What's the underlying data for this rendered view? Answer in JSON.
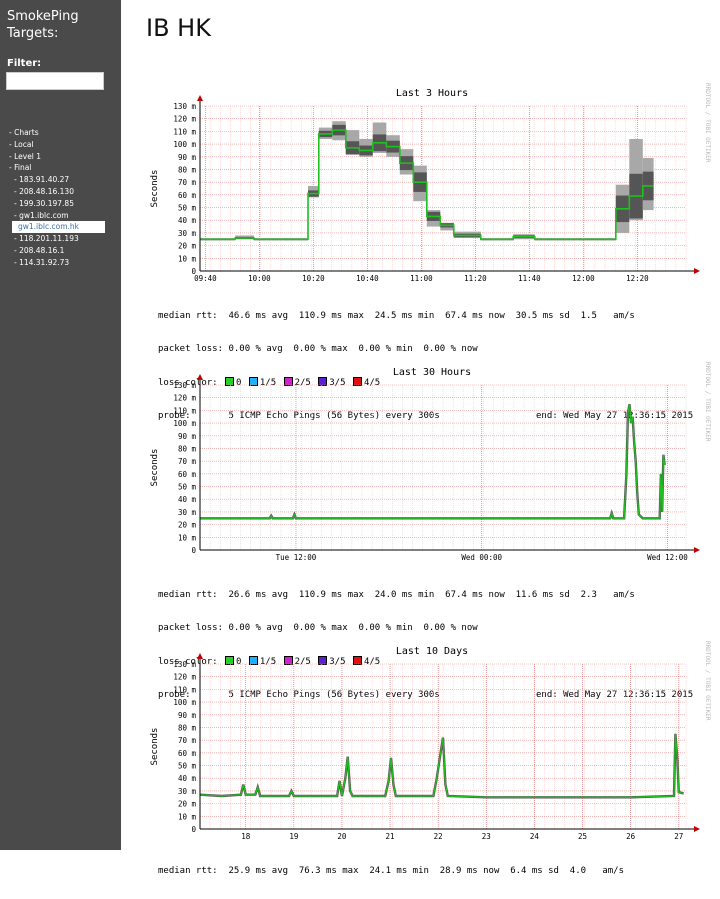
{
  "sidebar": {
    "brand_line1": "SmokePing",
    "brand_line2": "Targets:",
    "filter_label": "Filter:",
    "filter_value": "",
    "nav": [
      {
        "label": "- Charts",
        "level": 0
      },
      {
        "label": "- Local",
        "level": 0
      },
      {
        "label": "- Level 1",
        "level": 0
      },
      {
        "label": "- Final",
        "level": 0
      },
      {
        "label": "- 183.91.40.27",
        "level": 1
      },
      {
        "label": "- 208.48.16.130",
        "level": 1
      },
      {
        "label": "- 199.30.197.85",
        "level": 1
      },
      {
        "label": "- gw1.iblc.com",
        "level": 1
      },
      {
        "label": "gw1.iblc.com.hk",
        "level": 2,
        "active": true
      },
      {
        "label": "- 118.201.11.193",
        "level": 1
      },
      {
        "label": "- 208.48.16.1",
        "level": 1
      },
      {
        "label": "- 114.31.92.73",
        "level": 1
      }
    ]
  },
  "page": {
    "title": "IB HK"
  },
  "rrdtool_watermark": "RRDTOOL / TOBI OETIKER",
  "loss_colors": [
    {
      "label": "0",
      "color": "#26d026"
    },
    {
      "label": "1/5",
      "color": "#1fb0ff"
    },
    {
      "label": "2/5",
      "color": "#d21fd2"
    },
    {
      "label": "3/5",
      "color": "#5b1fd2"
    },
    {
      "label": "4/5",
      "color": "#e01010"
    }
  ],
  "graphs": [
    {
      "title": "Last 3 Hours",
      "median_rtt": "median rtt:  46.6 ms avg  110.9 ms max  24.5 ms min  67.4 ms now  30.5 ms sd  1.5   am/s",
      "packet_loss": "packet loss: 0.00 % avg  0.00 % max  0.00 % min  0.00 % now",
      "loss_color_label": "loss color:",
      "probe": "probe:       5 ICMP Echo Pings (56 Bytes) every 300s",
      "end": "end: Wed May 27 12:36:15 2015",
      "chart_data": {
        "type": "line",
        "title": "Last 3 Hours",
        "ylabel": "Seconds",
        "ylim": [
          0,
          130
        ],
        "y_ticks": [
          "0",
          "10 m",
          "20 m",
          "30 m",
          "40 m",
          "50 m",
          "60 m",
          "70 m",
          "80 m",
          "90 m",
          "100 m",
          "110 m",
          "120 m",
          "130 m"
        ],
        "x_tick_labels": [
          "09:40",
          "10:00",
          "10:20",
          "10:40",
          "11:00",
          "11:20",
          "11:40",
          "12:00",
          "12:20"
        ],
        "x_tick_pos": [
          0,
          20,
          40,
          60,
          80,
          100,
          120,
          140,
          160
        ],
        "xlim": [
          -2,
          178
        ],
        "x_unit": "minutes after 09:40",
        "steps": [
          {
            "x0": -2,
            "x1": 11,
            "med": 25,
            "lo": 24,
            "hi": 26
          },
          {
            "x0": 11,
            "x1": 18,
            "med": 26,
            "lo": 25,
            "hi": 28
          },
          {
            "x0": 18,
            "x1": 29,
            "med": 25,
            "lo": 24,
            "hi": 26
          },
          {
            "x0": 29,
            "x1": 38,
            "med": 25,
            "lo": 24,
            "hi": 26
          },
          {
            "x0": 38,
            "x1": 42,
            "med": 61,
            "lo": 58,
            "hi": 67
          },
          {
            "x0": 42,
            "x1": 47,
            "med": 108,
            "lo": 104,
            "hi": 113
          },
          {
            "x0": 47,
            "x1": 52,
            "med": 111,
            "lo": 103,
            "hi": 118
          },
          {
            "x0": 52,
            "x1": 57,
            "med": 97,
            "lo": 92,
            "hi": 111
          },
          {
            "x0": 57,
            "x1": 62,
            "med": 95,
            "lo": 90,
            "hi": 104
          },
          {
            "x0": 62,
            "x1": 67,
            "med": 101,
            "lo": 93,
            "hi": 117
          },
          {
            "x0": 67,
            "x1": 72,
            "med": 98,
            "lo": 90,
            "hi": 107
          },
          {
            "x0": 72,
            "x1": 77,
            "med": 85,
            "lo": 76,
            "hi": 96
          },
          {
            "x0": 77,
            "x1": 82,
            "med": 70,
            "lo": 55,
            "hi": 83
          },
          {
            "x0": 82,
            "x1": 87,
            "med": 43,
            "lo": 35,
            "hi": 48
          },
          {
            "x0": 87,
            "x1": 92,
            "med": 36,
            "lo": 32,
            "hi": 38
          },
          {
            "x0": 92,
            "x1": 102,
            "med": 28,
            "lo": 26,
            "hi": 31
          },
          {
            "x0": 102,
            "x1": 114,
            "med": 25,
            "lo": 24,
            "hi": 26
          },
          {
            "x0": 114,
            "x1": 122,
            "med": 27,
            "lo": 25,
            "hi": 29
          },
          {
            "x0": 122,
            "x1": 131,
            "med": 25,
            "lo": 24,
            "hi": 26
          },
          {
            "x0": 131,
            "x1": 152,
            "med": 25,
            "lo": 24,
            "hi": 26
          },
          {
            "x0": 152,
            "x1": 157,
            "med": 49,
            "lo": 30,
            "hi": 68
          },
          {
            "x0": 157,
            "x1": 162,
            "med": 59,
            "lo": 40,
            "hi": 104
          },
          {
            "x0": 162,
            "x1": 166,
            "med": 67,
            "lo": 48,
            "hi": 89
          }
        ]
      }
    },
    {
      "title": "Last 30 Hours",
      "median_rtt": "median rtt:  26.6 ms avg  110.9 ms max  24.0 ms min  67.4 ms now  11.6 ms sd  2.3   am/s",
      "packet_loss": "packet loss: 0.00 % avg  0.00 % max  0.00 % min  0.00 % now",
      "loss_color_label": "loss color:",
      "probe": "probe:       5 ICMP Echo Pings (56 Bytes) every 300s",
      "end": "end: Wed May 27 12:36:15 2015",
      "chart_data": {
        "type": "line",
        "title": "Last 30 Hours",
        "ylabel": "Seconds",
        "ylim": [
          0,
          130
        ],
        "y_ticks": [
          "0",
          "10 m",
          "20 m",
          "30 m",
          "40 m",
          "50 m",
          "60 m",
          "70 m",
          "80 m",
          "90 m",
          "100 m",
          "110 m",
          "120 m",
          "130 m"
        ],
        "x_tick_labels": [
          "Tue 12:00",
          "Wed 00:00",
          "Wed 12:00"
        ],
        "x_tick_pos": [
          6.2,
          18.2,
          30.2
        ],
        "xlim": [
          0,
          31.4
        ],
        "x_unit": "hours",
        "series": [
          {
            "x": 0,
            "y": 25
          },
          {
            "x": 4.5,
            "y": 25
          },
          {
            "x": 4.6,
            "y": 27
          },
          {
            "x": 4.7,
            "y": 25
          },
          {
            "x": 6.0,
            "y": 25
          },
          {
            "x": 6.1,
            "y": 28
          },
          {
            "x": 6.2,
            "y": 25
          },
          {
            "x": 12,
            "y": 25
          },
          {
            "x": 18,
            "y": 25
          },
          {
            "x": 24,
            "y": 25
          },
          {
            "x": 26.5,
            "y": 25
          },
          {
            "x": 26.6,
            "y": 29
          },
          {
            "x": 26.7,
            "y": 25
          },
          {
            "x": 27.4,
            "y": 25
          },
          {
            "x": 27.55,
            "y": 60
          },
          {
            "x": 27.65,
            "y": 108
          },
          {
            "x": 27.75,
            "y": 115
          },
          {
            "x": 27.85,
            "y": 100
          },
          {
            "x": 27.95,
            "y": 105
          },
          {
            "x": 28.05,
            "y": 85
          },
          {
            "x": 28.15,
            "y": 70
          },
          {
            "x": 28.25,
            "y": 45
          },
          {
            "x": 28.35,
            "y": 28
          },
          {
            "x": 28.6,
            "y": 25
          },
          {
            "x": 29.7,
            "y": 25
          },
          {
            "x": 29.78,
            "y": 60
          },
          {
            "x": 29.86,
            "y": 30
          },
          {
            "x": 29.94,
            "y": 75
          },
          {
            "x": 30.02,
            "y": 67
          }
        ]
      }
    },
    {
      "title": "Last 10 Days",
      "median_rtt": "median rtt:  25.9 ms avg  76.3 ms max  24.1 ms min  28.9 ms now  6.4 ms sd  4.0   am/s",
      "packet_loss": "",
      "loss_color_label": "",
      "probe": "",
      "end": "",
      "chart_data": {
        "type": "line",
        "title": "Last 10 Days",
        "ylabel": "Seconds",
        "ylim": [
          0,
          130
        ],
        "y_ticks": [
          "0",
          "10 m",
          "20 m",
          "30 m",
          "40 m",
          "50 m",
          "60 m",
          "70 m",
          "80 m",
          "90 m",
          "100 m",
          "110 m",
          "120 m",
          "130 m"
        ],
        "x_tick_labels": [
          "18",
          "19",
          "20",
          "21",
          "22",
          "23",
          "24",
          "25",
          "26",
          "27"
        ],
        "x_tick_pos": [
          18,
          19,
          20,
          21,
          22,
          23,
          24,
          25,
          26,
          27
        ],
        "xlim": [
          17.05,
          27.15
        ],
        "x_unit": "day of month",
        "series": [
          {
            "x": 17.05,
            "y": 27
          },
          {
            "x": 17.5,
            "y": 26
          },
          {
            "x": 17.9,
            "y": 27
          },
          {
            "x": 17.95,
            "y": 35
          },
          {
            "x": 18.0,
            "y": 27
          },
          {
            "x": 18.2,
            "y": 27
          },
          {
            "x": 18.25,
            "y": 33
          },
          {
            "x": 18.3,
            "y": 26
          },
          {
            "x": 18.9,
            "y": 26
          },
          {
            "x": 18.95,
            "y": 30
          },
          {
            "x": 19.0,
            "y": 26
          },
          {
            "x": 19.9,
            "y": 26
          },
          {
            "x": 19.95,
            "y": 38
          },
          {
            "x": 20.0,
            "y": 26
          },
          {
            "x": 20.07,
            "y": 40
          },
          {
            "x": 20.12,
            "y": 57
          },
          {
            "x": 20.17,
            "y": 30
          },
          {
            "x": 20.22,
            "y": 26
          },
          {
            "x": 20.9,
            "y": 26
          },
          {
            "x": 20.97,
            "y": 38
          },
          {
            "x": 21.02,
            "y": 56
          },
          {
            "x": 21.07,
            "y": 35
          },
          {
            "x": 21.12,
            "y": 26
          },
          {
            "x": 21.9,
            "y": 26
          },
          {
            "x": 21.97,
            "y": 40
          },
          {
            "x": 22.05,
            "y": 60
          },
          {
            "x": 22.1,
            "y": 72
          },
          {
            "x": 22.15,
            "y": 35
          },
          {
            "x": 22.2,
            "y": 26
          },
          {
            "x": 23,
            "y": 25
          },
          {
            "x": 24,
            "y": 25
          },
          {
            "x": 25,
            "y": 25
          },
          {
            "x": 26,
            "y": 25
          },
          {
            "x": 26.9,
            "y": 26
          },
          {
            "x": 26.93,
            "y": 75
          },
          {
            "x": 26.97,
            "y": 55
          },
          {
            "x": 27.0,
            "y": 29
          },
          {
            "x": 27.1,
            "y": 28
          }
        ]
      }
    }
  ]
}
